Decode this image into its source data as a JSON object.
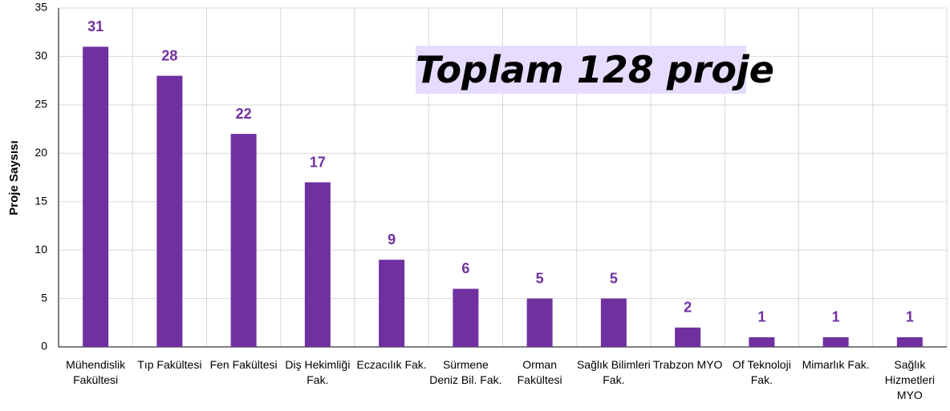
{
  "chart_data": {
    "type": "bar",
    "y_label": "Proje Saysısı",
    "annotation": "Toplam 128 proje",
    "categories": [
      "Mühendislik Fakültesi",
      "Tıp Fakültesi",
      "Fen Fakültesi",
      "Diş Hekimliği Fak.",
      "Eczacılık Fak.",
      "Sürmene Deniz Bil. Fak.",
      "Orman Fakültesi",
      "Sağlık Bilimleri Fak.",
      "Trabzon MYO",
      "Of Teknoloji Fak.",
      "Mimarlık Fak.",
      "Sağlık Hizmetleri MYO"
    ],
    "values": [
      31,
      28,
      22,
      17,
      9,
      6,
      5,
      5,
      2,
      1,
      1,
      1
    ],
    "color": "#7030a0",
    "ylim": [
      0,
      35
    ],
    "yticks": [
      0,
      5,
      10,
      15,
      20,
      25,
      30,
      35
    ],
    "grid": true
  }
}
